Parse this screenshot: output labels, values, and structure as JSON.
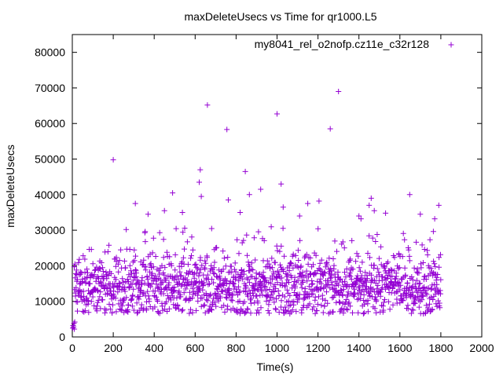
{
  "chart_data": {
    "type": "scatter",
    "title": "maxDeleteUsecs vs Time for qr1000.L5",
    "xlabel": "Time(s)",
    "ylabel": "maxDeleteUsecs",
    "xlim": [
      0,
      2000
    ],
    "ylim": [
      0,
      85000
    ],
    "x_ticks": [
      0,
      200,
      400,
      600,
      800,
      1000,
      1200,
      1400,
      1600,
      1800,
      2000
    ],
    "y_ticks": [
      0,
      10000,
      20000,
      30000,
      40000,
      50000,
      60000,
      70000,
      80000
    ],
    "grid": false,
    "legend_position": "top-right",
    "marker": "plus",
    "series": [
      {
        "name": "my8041_rel_o2nofp.cz11e_c32r128",
        "color": "#9400d3",
        "points": [
          [
            2,
            2500
          ],
          [
            4,
            3200
          ],
          [
            6,
            2800
          ],
          [
            8,
            3800
          ],
          [
            10,
            2200
          ],
          [
            12,
            4200
          ],
          [
            200,
            49800
          ],
          [
            308,
            37500
          ],
          [
            370,
            34500
          ],
          [
            450,
            35500
          ],
          [
            490,
            40500
          ],
          [
            538,
            35000
          ],
          [
            620,
            43500
          ],
          [
            625,
            47000
          ],
          [
            630,
            39500
          ],
          [
            660,
            65200
          ],
          [
            755,
            58300
          ],
          [
            762,
            38500
          ],
          [
            820,
            35000
          ],
          [
            845,
            46500
          ],
          [
            865,
            40000
          ],
          [
            920,
            41500
          ],
          [
            1000,
            62700
          ],
          [
            1020,
            43000
          ],
          [
            1030,
            36500
          ],
          [
            1110,
            34000
          ],
          [
            1150,
            37500
          ],
          [
            1205,
            38200
          ],
          [
            1260,
            58500
          ],
          [
            1300,
            69000
          ],
          [
            1400,
            34000
          ],
          [
            1410,
            33200
          ],
          [
            1450,
            37000
          ],
          [
            1460,
            39000
          ],
          [
            1475,
            35500
          ],
          [
            1530,
            34800
          ],
          [
            1648,
            40000
          ],
          [
            1700,
            34500
          ],
          [
            1770,
            33200
          ],
          [
            1790,
            37000
          ]
        ],
        "generated_bulk": {
          "description_of_distribution": "dense band between 7000 and 25000, centered near 14000, over x 10..1800",
          "x_range": [
            10,
            1800
          ],
          "y_center": 14000,
          "y_spread": 4200,
          "y_min": 6500,
          "y_max": 31000,
          "count": 1500,
          "seed": 41
        }
      }
    ]
  }
}
